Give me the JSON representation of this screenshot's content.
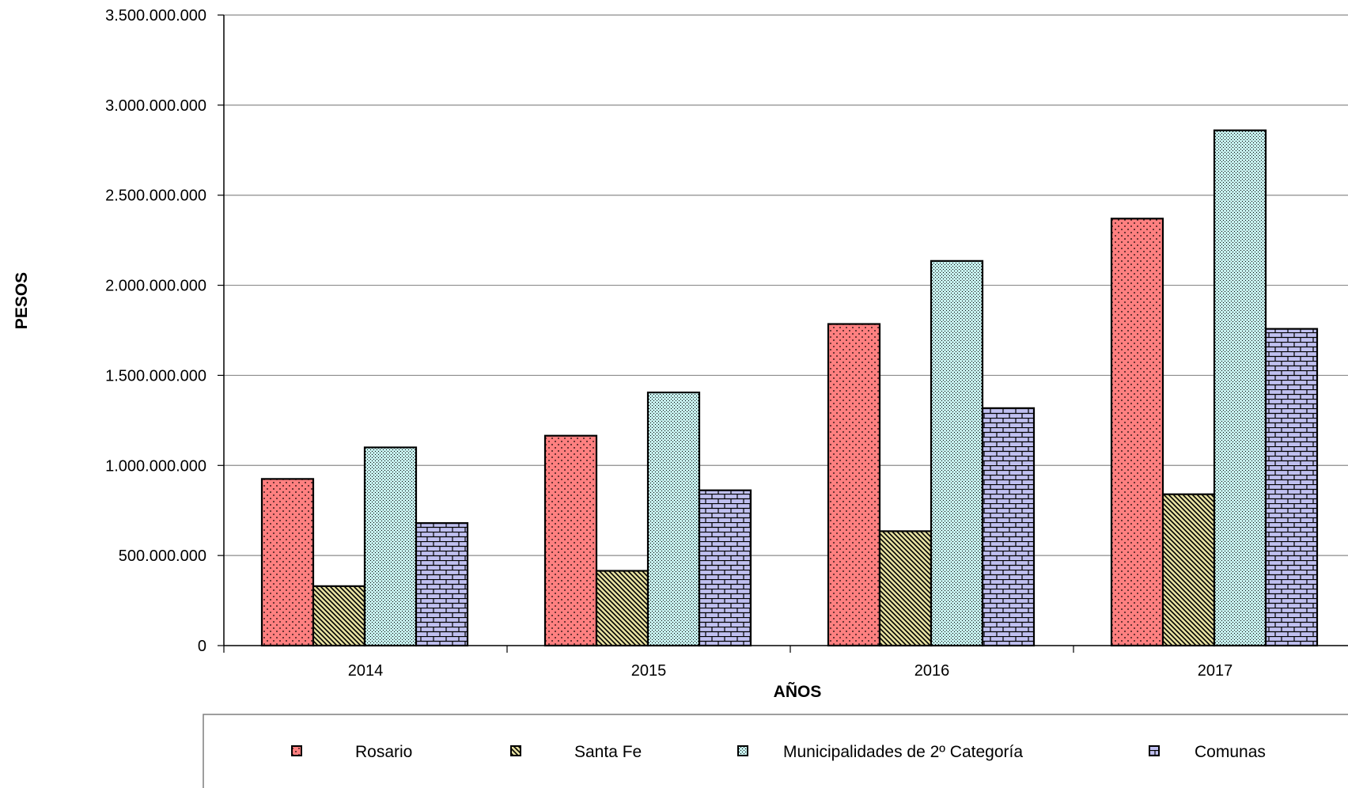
{
  "chart_data": {
    "type": "bar",
    "title": "",
    "xlabel": "AÑOS",
    "ylabel": "PESOS",
    "categories": [
      "2014",
      "2015",
      "2016",
      "2017"
    ],
    "ylim": [
      0,
      3500000000
    ],
    "yticks": [
      0,
      500000000,
      1000000000,
      1500000000,
      2000000000,
      2500000000,
      3000000000,
      3500000000
    ],
    "ytick_labels": [
      "0",
      "500.000.000",
      "1.000.000.000",
      "1.500.000.000",
      "2.000.000.000",
      "2.500.000.000",
      "3.000.000.000",
      "3.500.000.000"
    ],
    "grid": true,
    "legend_position": "bottom",
    "series": [
      {
        "name": "Rosario",
        "color": "#ff8080",
        "pattern": "dots",
        "values": [
          925000000,
          1165000000,
          1785000000,
          2370000000
        ]
      },
      {
        "name": "Santa Fe",
        "color": "#e6e0a0",
        "pattern": "diagonal-stripes",
        "values": [
          330000000,
          415000000,
          635000000,
          840000000
        ]
      },
      {
        "name": "Municipalidades de 2º Categoría",
        "color": "#c6f0ee",
        "pattern": "fine-checker",
        "values": [
          1100000000,
          1405000000,
          2135000000,
          2860000000
        ]
      },
      {
        "name": "Comunas",
        "color": "#c0c0f0",
        "pattern": "bricks",
        "values": [
          680000000,
          862000000,
          1318000000,
          1758000000
        ]
      }
    ]
  }
}
